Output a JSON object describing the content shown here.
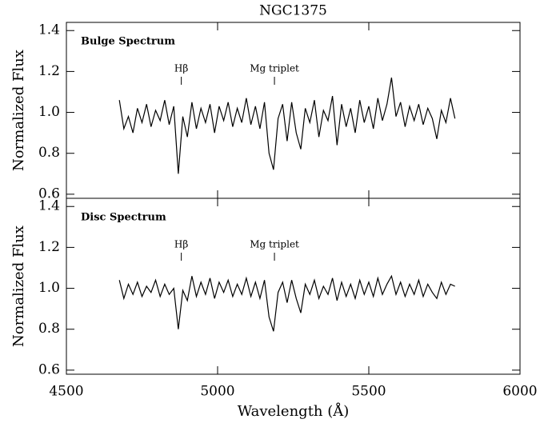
{
  "chart_data": [
    {
      "type": "line",
      "title": "NGC1375",
      "y_label": "Normalized Flux",
      "panel_label": "Bulge Spectrum",
      "color": "#000000",
      "annotations": [
        {
          "text": "Hβ",
          "x": 4880
        },
        {
          "text": "Mg triplet",
          "x": 5188
        }
      ],
      "xlim": [
        4500,
        6000
      ],
      "xticks": [
        4500,
        5000,
        5500,
        6000
      ],
      "ylim": [
        0.58,
        1.44
      ],
      "yticks": [
        0.6,
        0.8,
        {
          "value": 1,
          "label": "1.0"
        },
        1.2,
        1.4
      ],
      "x": [
        4675,
        4690,
        4705,
        4720,
        4735,
        4750,
        4765,
        4780,
        4795,
        4810,
        4825,
        4840,
        4855,
        4870,
        4885,
        4900,
        4915,
        4930,
        4945,
        4960,
        4975,
        4990,
        5005,
        5020,
        5035,
        5050,
        5065,
        5080,
        5095,
        5110,
        5125,
        5140,
        5155,
        5170,
        5185,
        5200,
        5215,
        5230,
        5245,
        5260,
        5275,
        5290,
        5305,
        5320,
        5335,
        5350,
        5365,
        5380,
        5395,
        5410,
        5425,
        5440,
        5455,
        5470,
        5485,
        5500,
        5515,
        5530,
        5545,
        5560,
        5575,
        5590,
        5605,
        5620,
        5635,
        5650,
        5665,
        5680,
        5695,
        5710,
        5725,
        5740,
        5755,
        5770,
        5785
      ],
      "values": [
        1.06,
        0.92,
        0.98,
        0.9,
        1.02,
        0.95,
        1.04,
        0.93,
        1.01,
        0.96,
        1.06,
        0.94,
        1.03,
        0.7,
        0.98,
        0.88,
        1.05,
        0.92,
        1.02,
        0.95,
        1.04,
        0.9,
        1.03,
        0.96,
        1.05,
        0.93,
        1.02,
        0.95,
        1.07,
        0.94,
        1.03,
        0.92,
        1.05,
        0.8,
        0.72,
        0.97,
        1.04,
        0.86,
        1.05,
        0.9,
        0.82,
        1.02,
        0.95,
        1.06,
        0.88,
        1.01,
        0.96,
        1.08,
        0.84,
        1.04,
        0.93,
        1.02,
        0.9,
        1.06,
        0.95,
        1.03,
        0.92,
        1.07,
        0.96,
        1.04,
        1.17,
        0.98,
        1.05,
        0.93,
        1.03,
        0.96,
        1.04,
        0.94,
        1.02,
        0.97,
        0.87,
        1.01,
        0.95,
        1.07,
        0.97
      ]
    },
    {
      "type": "line",
      "x_label": "Wavelength (Å)",
      "y_label": "Normalized Flux",
      "panel_label": "Disc Spectrum",
      "color": "#000000",
      "annotations": [
        {
          "text": "Hβ",
          "x": 4880
        },
        {
          "text": "Mg triplet",
          "x": 5188
        }
      ],
      "xlim": [
        4500,
        6000
      ],
      "xticks": [
        4500,
        5000,
        5500,
        6000
      ],
      "ylim": [
        0.58,
        1.44
      ],
      "yticks": [
        0.6,
        0.8,
        {
          "value": 1,
          "label": "1.0"
        },
        1.2,
        1.4
      ],
      "x": [
        4675,
        4690,
        4705,
        4720,
        4735,
        4750,
        4765,
        4780,
        4795,
        4810,
        4825,
        4840,
        4855,
        4870,
        4885,
        4900,
        4915,
        4930,
        4945,
        4960,
        4975,
        4990,
        5005,
        5020,
        5035,
        5050,
        5065,
        5080,
        5095,
        5110,
        5125,
        5140,
        5155,
        5170,
        5185,
        5200,
        5215,
        5230,
        5245,
        5260,
        5275,
        5290,
        5305,
        5320,
        5335,
        5350,
        5365,
        5380,
        5395,
        5410,
        5425,
        5440,
        5455,
        5470,
        5485,
        5500,
        5515,
        5530,
        5545,
        5560,
        5575,
        5590,
        5605,
        5620,
        5635,
        5650,
        5665,
        5680,
        5695,
        5710,
        5725,
        5740,
        5755,
        5770,
        5785
      ],
      "values": [
        1.04,
        0.95,
        1.02,
        0.97,
        1.03,
        0.96,
        1.01,
        0.98,
        1.04,
        0.96,
        1.02,
        0.97,
        1.0,
        0.8,
        0.99,
        0.94,
        1.06,
        0.96,
        1.03,
        0.97,
        1.05,
        0.95,
        1.03,
        0.98,
        1.04,
        0.96,
        1.02,
        0.97,
        1.05,
        0.96,
        1.03,
        0.95,
        1.04,
        0.86,
        0.79,
        0.98,
        1.03,
        0.93,
        1.04,
        0.95,
        0.88,
        1.02,
        0.97,
        1.04,
        0.95,
        1.01,
        0.97,
        1.05,
        0.94,
        1.03,
        0.96,
        1.02,
        0.95,
        1.04,
        0.97,
        1.03,
        0.96,
        1.05,
        0.97,
        1.02,
        1.06,
        0.97,
        1.03,
        0.96,
        1.02,
        0.97,
        1.04,
        0.96,
        1.02,
        0.98,
        0.95,
        1.03,
        0.97,
        1.02,
        1.01
      ]
    }
  ]
}
